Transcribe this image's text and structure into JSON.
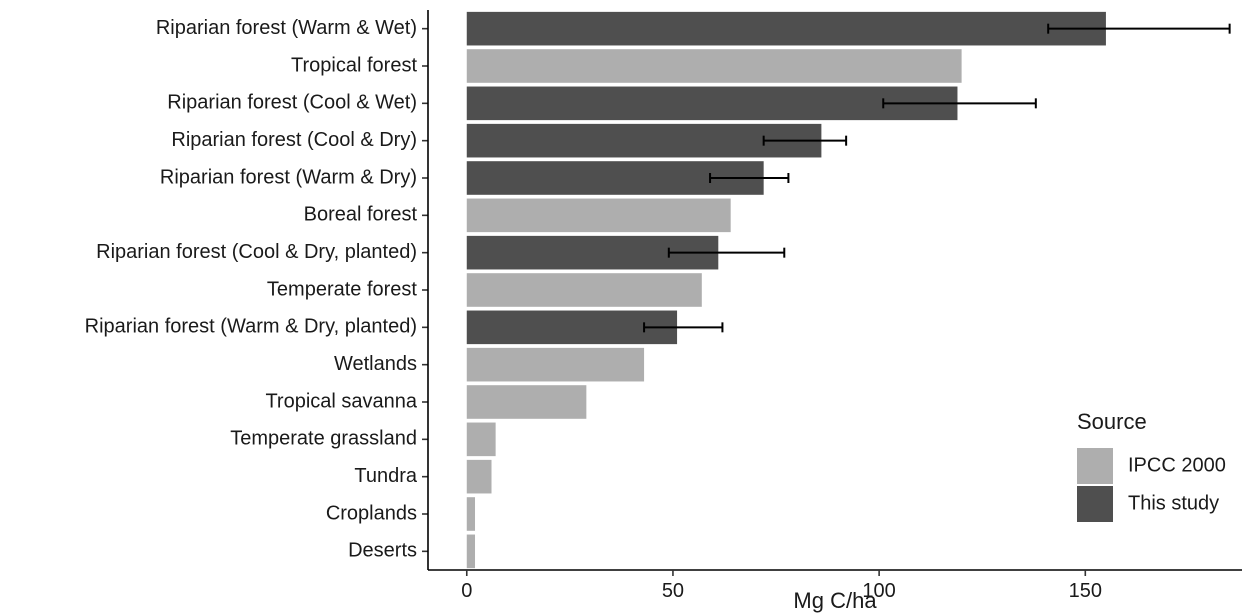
{
  "chart_data": {
    "type": "bar",
    "orientation": "horizontal",
    "xlabel": "Mg C/ha",
    "xlim": [
      -9.4,
      188
    ],
    "xticks": [
      0,
      50,
      100,
      150
    ],
    "grid": false,
    "legend": {
      "title": "Source",
      "position": "bottom-right",
      "entries": [
        {
          "name": "IPCC 2000",
          "color": "#aeaeae"
        },
        {
          "name": "This study",
          "color": "#4f4f4f"
        }
      ]
    },
    "categories": [
      "Riparian forest (Warm & Wet)",
      "Tropical forest",
      "Riparian forest (Cool & Wet)",
      "Riparian forest (Cool & Dry)",
      "Riparian forest (Warm & Dry)",
      "Boreal forest",
      "Riparian forest (Cool & Dry, planted)",
      "Temperate forest",
      "Riparian forest (Warm & Dry, planted)",
      "Wetlands",
      "Tropical savanna",
      "Temperate grassland",
      "Tundra",
      "Croplands",
      "Deserts"
    ],
    "values": [
      155,
      120,
      119,
      86,
      72,
      64,
      61,
      57,
      51,
      43,
      29,
      7,
      6,
      2,
      2
    ],
    "source": [
      "This study",
      "IPCC 2000",
      "This study",
      "This study",
      "This study",
      "IPCC 2000",
      "This study",
      "IPCC 2000",
      "This study",
      "IPCC 2000",
      "IPCC 2000",
      "IPCC 2000",
      "IPCC 2000",
      "IPCC 2000",
      "IPCC 2000"
    ],
    "error_low": [
      141,
      null,
      101,
      72,
      59,
      null,
      49,
      null,
      43,
      null,
      null,
      null,
      null,
      null,
      null
    ],
    "error_high": [
      185,
      null,
      138,
      92,
      78,
      null,
      77,
      null,
      62,
      null,
      null,
      null,
      null,
      null,
      null
    ]
  }
}
